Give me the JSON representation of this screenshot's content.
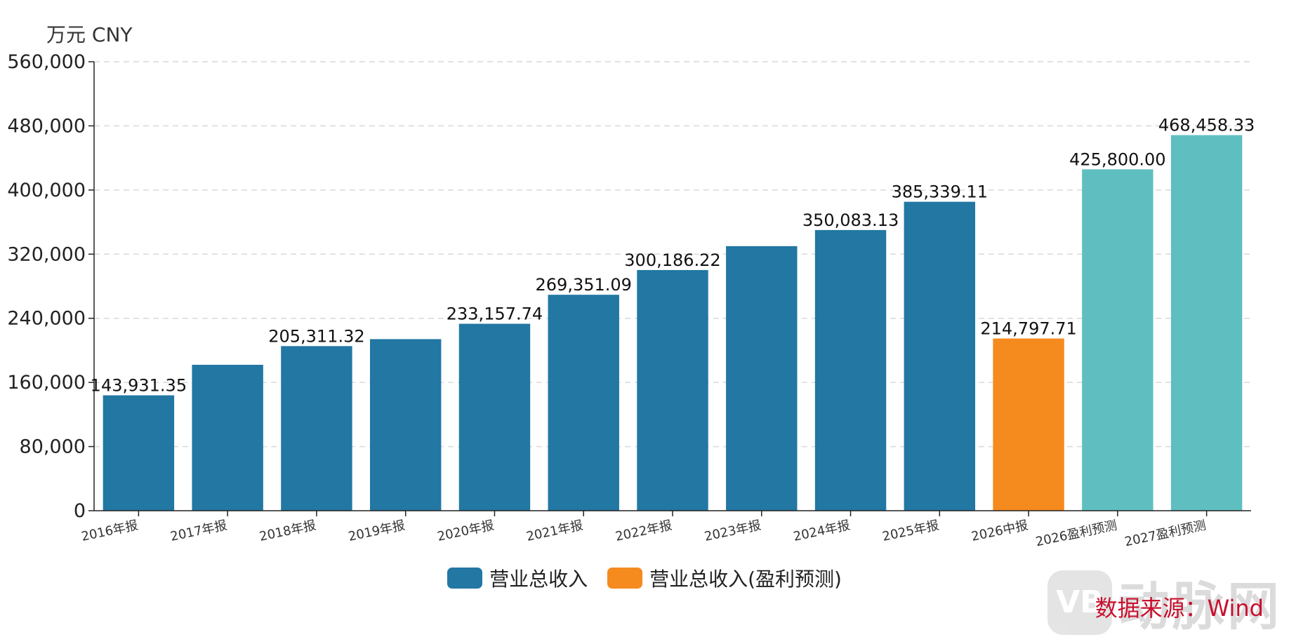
{
  "chart_data": {
    "type": "bar",
    "unit_label": "万元  CNY",
    "categories": [
      "2016年报",
      "2017年报",
      "2018年报",
      "2019年报",
      "2020年报",
      "2021年报",
      "2022年报",
      "2023年报",
      "2024年报",
      "2025年报",
      "2026中报",
      "2026盈利预测",
      "2027盈利预测"
    ],
    "values": [
      143931.35,
      182000,
      205311.32,
      214000,
      233157.74,
      269351.09,
      300186.22,
      330000,
      350083.13,
      385339.11,
      214797.71,
      425800.0,
      468458.33
    ],
    "data_labels": [
      "143,931.35",
      "",
      "205,311.32",
      "",
      "233,157.74",
      "269,351.09",
      "300,186.22",
      "",
      "350,083.13",
      "385,339.11",
      "214,797.71",
      "425,800.00",
      "468,458.33"
    ],
    "bar_colors": [
      "#2277a3",
      "#2277a3",
      "#2277a3",
      "#2277a3",
      "#2277a3",
      "#2277a3",
      "#2277a3",
      "#2277a3",
      "#2277a3",
      "#2277a3",
      "#f58a1f",
      "#5fbfc0",
      "#5fbfc0"
    ],
    "ylim": [
      0,
      560000
    ],
    "yticks": [
      0,
      80000,
      160000,
      240000,
      320000,
      400000,
      480000,
      560000
    ],
    "ytick_labels": [
      "0",
      "80,000",
      "160,000",
      "240,000",
      "320,000",
      "400,000",
      "480,000",
      "560,000"
    ],
    "grid": true,
    "legend": {
      "placement": "bottom-center",
      "items": [
        {
          "label": "营业总收入",
          "color": "#2277a3"
        },
        {
          "label": "营业总收入(盈利预测)",
          "color": "#f58a1f"
        }
      ]
    }
  },
  "source_text": "数据来源：Wind",
  "watermark": {
    "logo_text": "VB",
    "text": "动脉网"
  }
}
